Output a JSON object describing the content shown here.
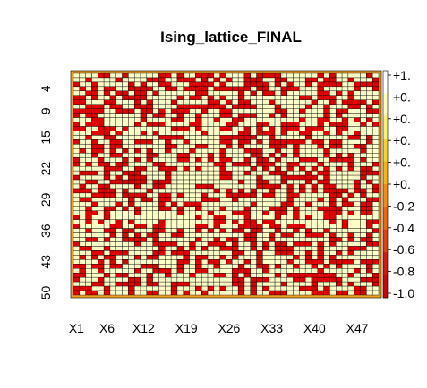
{
  "chart_data": {
    "type": "heatmap",
    "title": "Ising_lattice_FINAL",
    "xlabel": "",
    "ylabel": "",
    "rows": 50,
    "cols": 50,
    "x_tick_labels": [
      "X1",
      "X6",
      "X12",
      "X19",
      "X26",
      "X33",
      "X40",
      "X47"
    ],
    "y_tick_labels": [
      "4",
      "9",
      "15",
      "22",
      "29",
      "36",
      "43",
      "50"
    ],
    "colorbar_tick_labels": [
      "+1.",
      "+0.",
      "+0.",
      "+0.",
      "+0.",
      "+0.",
      "-0.2",
      "-0.4",
      "-0.6",
      "-0.8",
      "-1.0"
    ],
    "value_range": [
      -1,
      1
    ],
    "spin_down_fraction": 0.4,
    "grid": true,
    "colors": {
      "spin_up": "#FFFFC8",
      "spin_down": "#E00000",
      "edge": "#F0A020",
      "cell_border": "#000000"
    },
    "colorbar_gradient": [
      "#FFFFFF",
      "#FFFFB0",
      "#FFF066",
      "#FFD21E",
      "#FFB400",
      "#FF8C00",
      "#F86400",
      "#EE3C00",
      "#E21400",
      "#D80000"
    ]
  }
}
